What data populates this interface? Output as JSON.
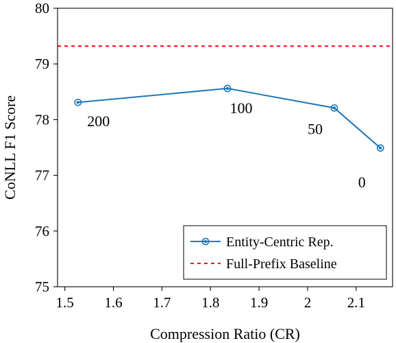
{
  "chart_data": {
    "type": "line",
    "xlabel": "Compression Ratio (CR)",
    "ylabel": "CoNLL F1 Score",
    "xlim": [
      1.485,
      2.175
    ],
    "ylim": [
      75,
      80
    ],
    "xticks": [
      1.5,
      1.6,
      1.7,
      1.8,
      1.9,
      2,
      2.1
    ],
    "xtick_labels": [
      "1.5",
      "1.6",
      "1.7",
      "1.8",
      "1.9",
      "2",
      "2.1"
    ],
    "yticks": [
      75,
      76,
      77,
      78,
      79,
      80
    ],
    "ytick_labels": [
      "75",
      "76",
      "77",
      "78",
      "79",
      "80"
    ],
    "grid": false,
    "legend_position": "bottom-right",
    "series": [
      {
        "name": "Entity-Centric Rep.",
        "color": "#1f77b4",
        "marker": "circle-dot",
        "x": [
          1.527,
          1.835,
          2.055,
          2.15
        ],
        "y": [
          78.31,
          78.56,
          78.21,
          77.49
        ],
        "point_labels": [
          "200",
          "100",
          "50",
          "0"
        ]
      }
    ],
    "baseline": {
      "name": "Full-Prefix Baseline",
      "color": "#ff0000",
      "style": "dashed",
      "y": 79.32
    }
  }
}
